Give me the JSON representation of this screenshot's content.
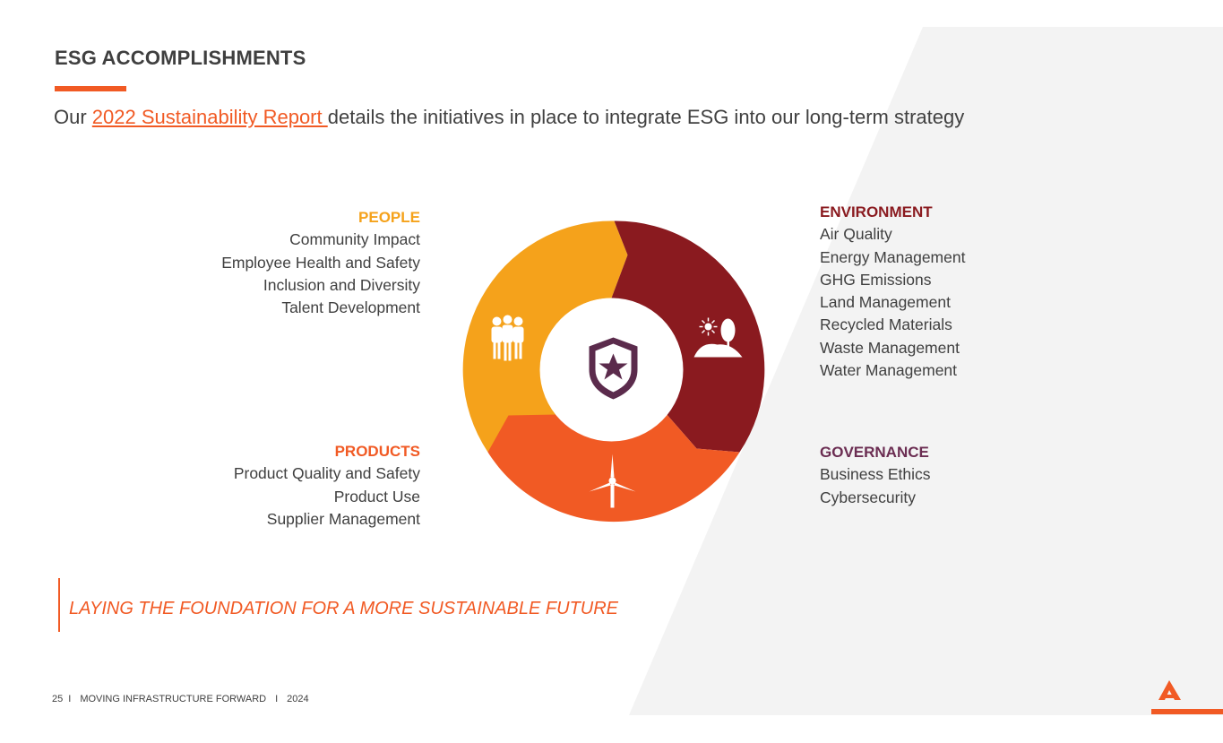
{
  "title": "ESG ACCOMPLISHMENTS",
  "intro": {
    "prefix": "Our ",
    "link_text": "2022 Sustainability Report ",
    "suffix": " details the initiatives in place to integrate ESG into our long-term strategy"
  },
  "sections": {
    "people": {
      "heading": "PEOPLE",
      "items": [
        "Community Impact",
        "Employee Health and Safety",
        "Inclusion and Diversity",
        "Talent Development"
      ],
      "color": "#f5a21b"
    },
    "environment": {
      "heading": "ENVIRONMENT",
      "items": [
        "Air Quality",
        "Energy Management",
        "GHG Emissions",
        "Land Management",
        "Recycled Materials",
        "Waste Management",
        "Water Management"
      ],
      "color": "#8a1a1f"
    },
    "products": {
      "heading": "PRODUCTS",
      "items": [
        "Product Quality and Safety",
        "Product Use",
        "Supplier Management"
      ],
      "color": "#f15a24"
    },
    "governance": {
      "heading": "GOVERNANCE",
      "items": [
        "Business Ethics",
        "Cybersecurity"
      ],
      "color": "#6b2d52"
    }
  },
  "wheel": {
    "icons": {
      "people": "people-group-icon",
      "environment": "landscape-sun-tree-icon",
      "products": "wind-turbine-icon",
      "center": "shield-star-icon"
    }
  },
  "tagline": "LAYING THE FOUNDATION FOR A MORE SUSTAINABLE FUTURE",
  "footer": {
    "page": "25",
    "sep1": "I",
    "text": "MOVING INFRASTRUCTURE FORWARD",
    "sep2": "I",
    "year": "2024"
  },
  "colors": {
    "accent": "#f15a24",
    "background_panel": "#f3f3f3"
  }
}
